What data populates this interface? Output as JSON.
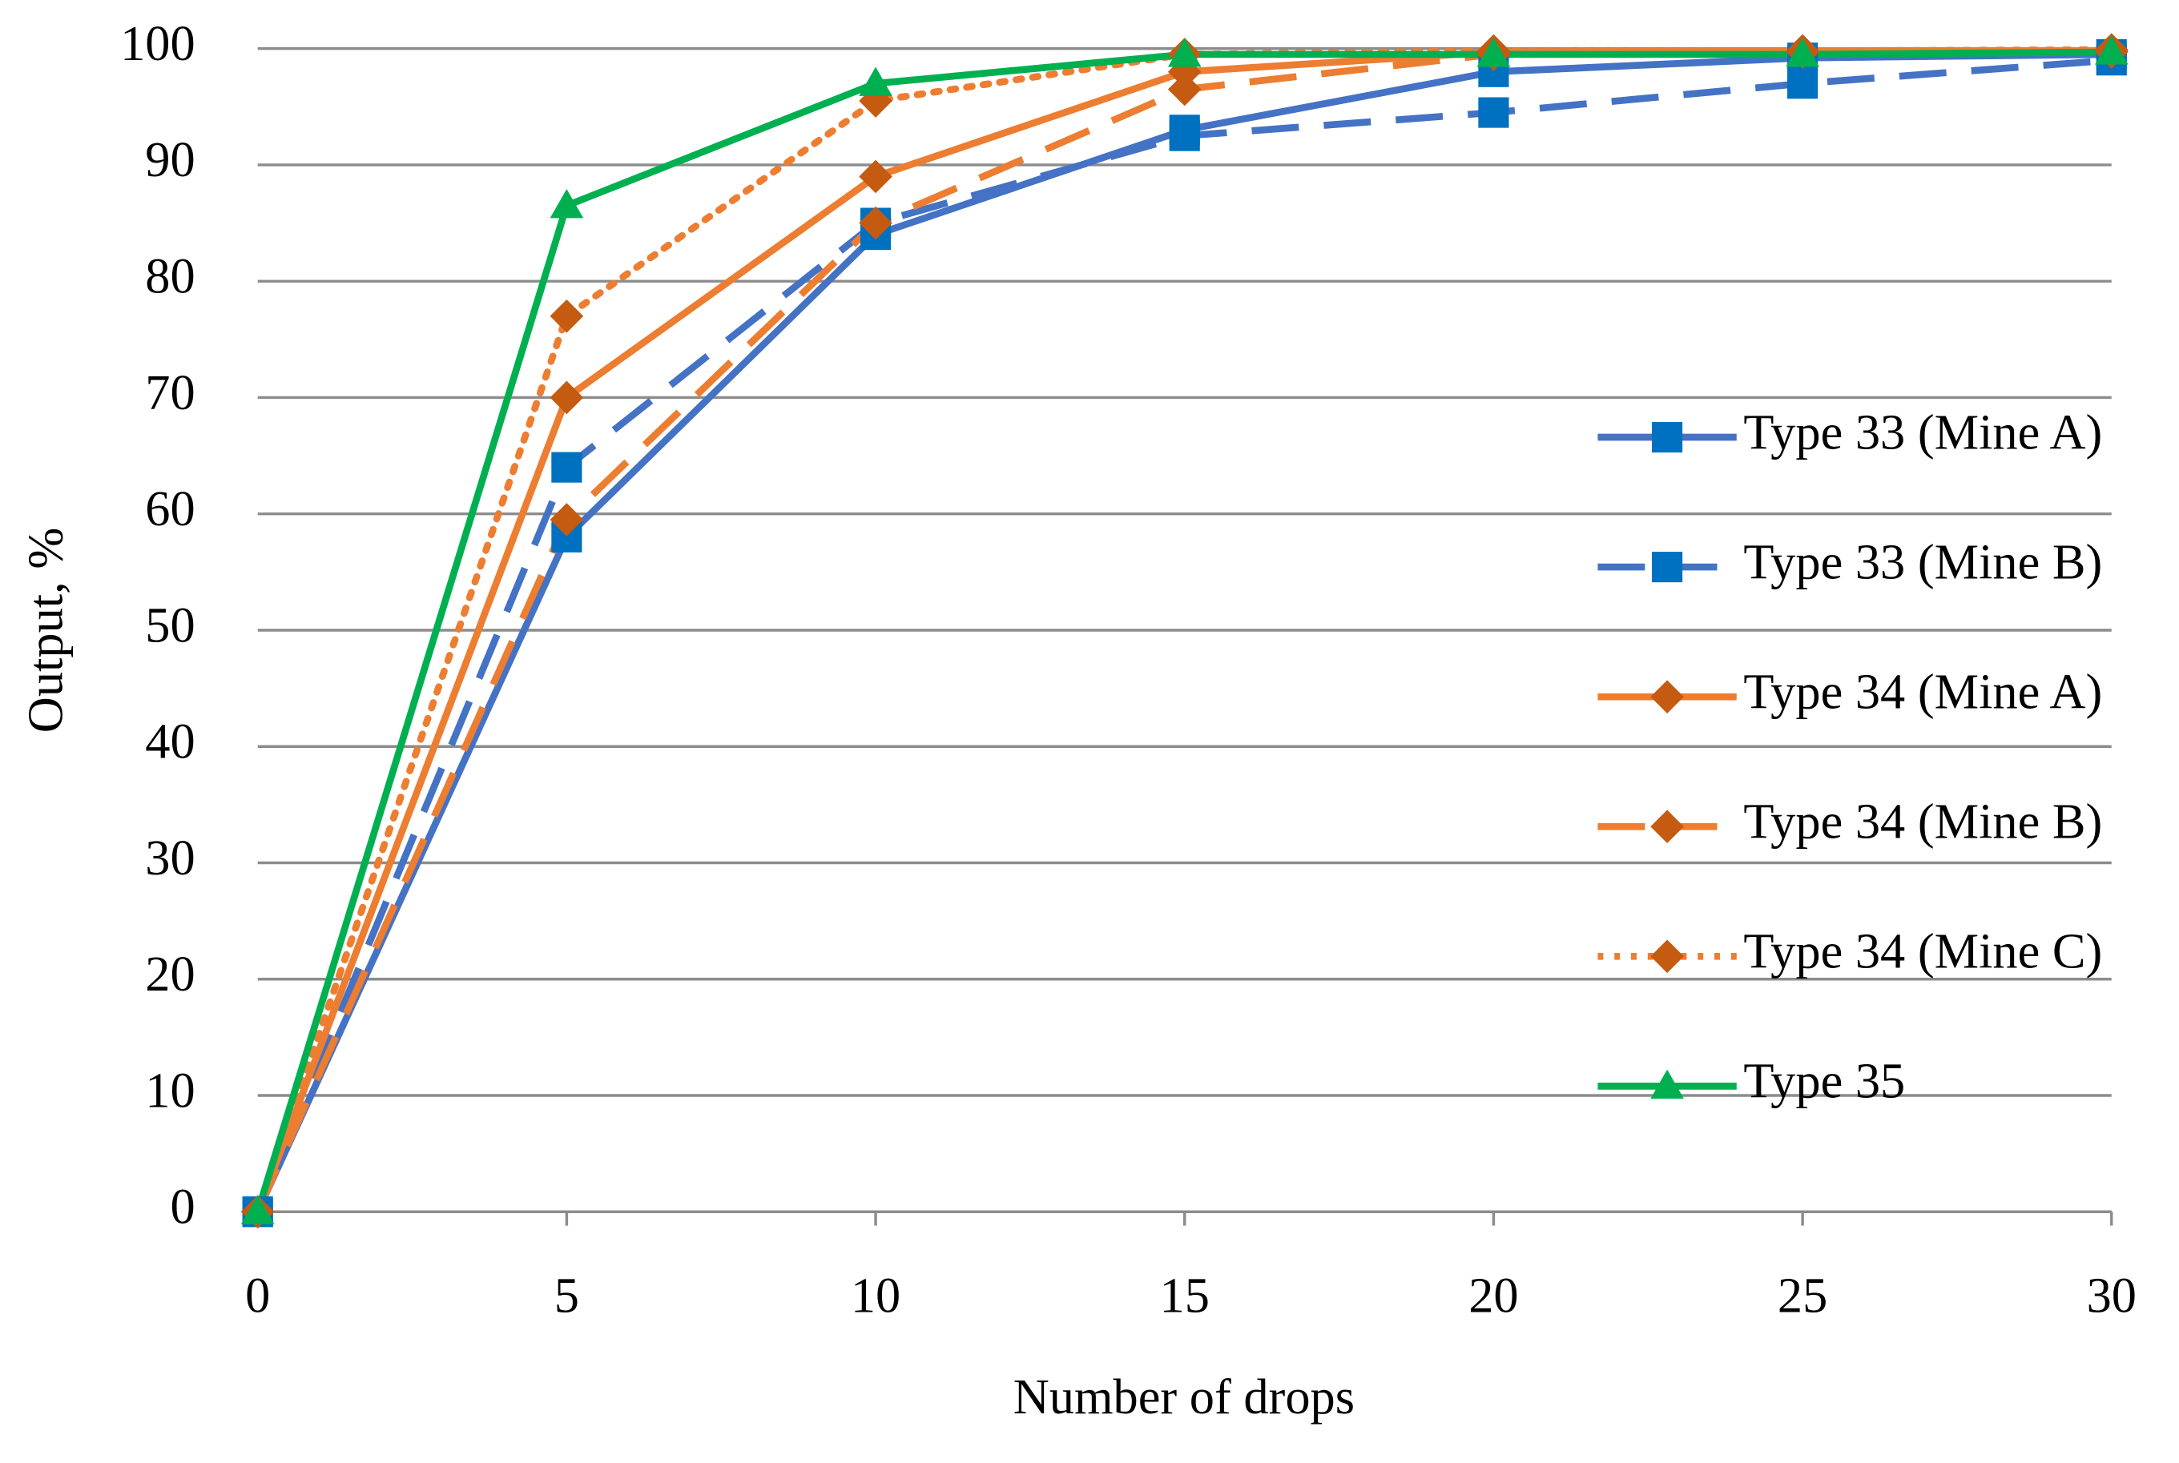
{
  "chart_data": {
    "type": "line",
    "x_label": "Number of drops",
    "y_label": "Output, %",
    "x": [
      0,
      5,
      10,
      15,
      20,
      25,
      30
    ],
    "xlim": [
      0,
      30
    ],
    "xticks": [
      0,
      5,
      10,
      15,
      20,
      25,
      30
    ],
    "ylim": [
      0,
      100
    ],
    "yticks": [
      0,
      10,
      20,
      30,
      40,
      50,
      60,
      70,
      80,
      90,
      100
    ],
    "grid": true,
    "legend": "right",
    "series": [
      {
        "name": "Type 33 (Mine A)",
        "color": "#4472c4",
        "marker_color": "#0070c0",
        "marker": "square",
        "dash": "solid",
        "values": [
          0,
          58,
          84,
          93,
          98,
          99.2,
          99.5
        ]
      },
      {
        "name": "Type 33 (Mine B)",
        "color": "#4472c4",
        "marker_color": "#0070c0",
        "marker": "square",
        "dash": "dashed",
        "values": [
          0,
          64,
          85,
          92.5,
          94.5,
          97,
          99
        ]
      },
      {
        "name": "Type 34 (Mine A)",
        "color": "#ed7d31",
        "marker_color": "#c55a11",
        "marker": "diamond",
        "dash": "solid",
        "values": [
          0,
          70,
          89,
          98,
          99.7,
          99.8,
          99.8
        ]
      },
      {
        "name": "Type 34 (Mine B)",
        "color": "#ed7d31",
        "marker_color": "#c55a11",
        "marker": "diamond",
        "dash": "dashed",
        "values": [
          0,
          59.5,
          85,
          96.5,
          99.5,
          99.7,
          99.7
        ]
      },
      {
        "name": "Type 34 (Mine C)",
        "color": "#ed7d31",
        "marker_color": "#c55a11",
        "marker": "diamond",
        "dash": "dotted",
        "values": [
          0,
          77,
          95.5,
          99.5,
          99.8,
          99.8,
          99.9
        ]
      },
      {
        "name": "Type 35",
        "color": "#00b050",
        "marker_color": "#00b050",
        "marker": "triangle",
        "dash": "solid",
        "values": [
          0,
          86.5,
          97,
          99.5,
          99.5,
          99.5,
          99.7
        ]
      }
    ]
  }
}
